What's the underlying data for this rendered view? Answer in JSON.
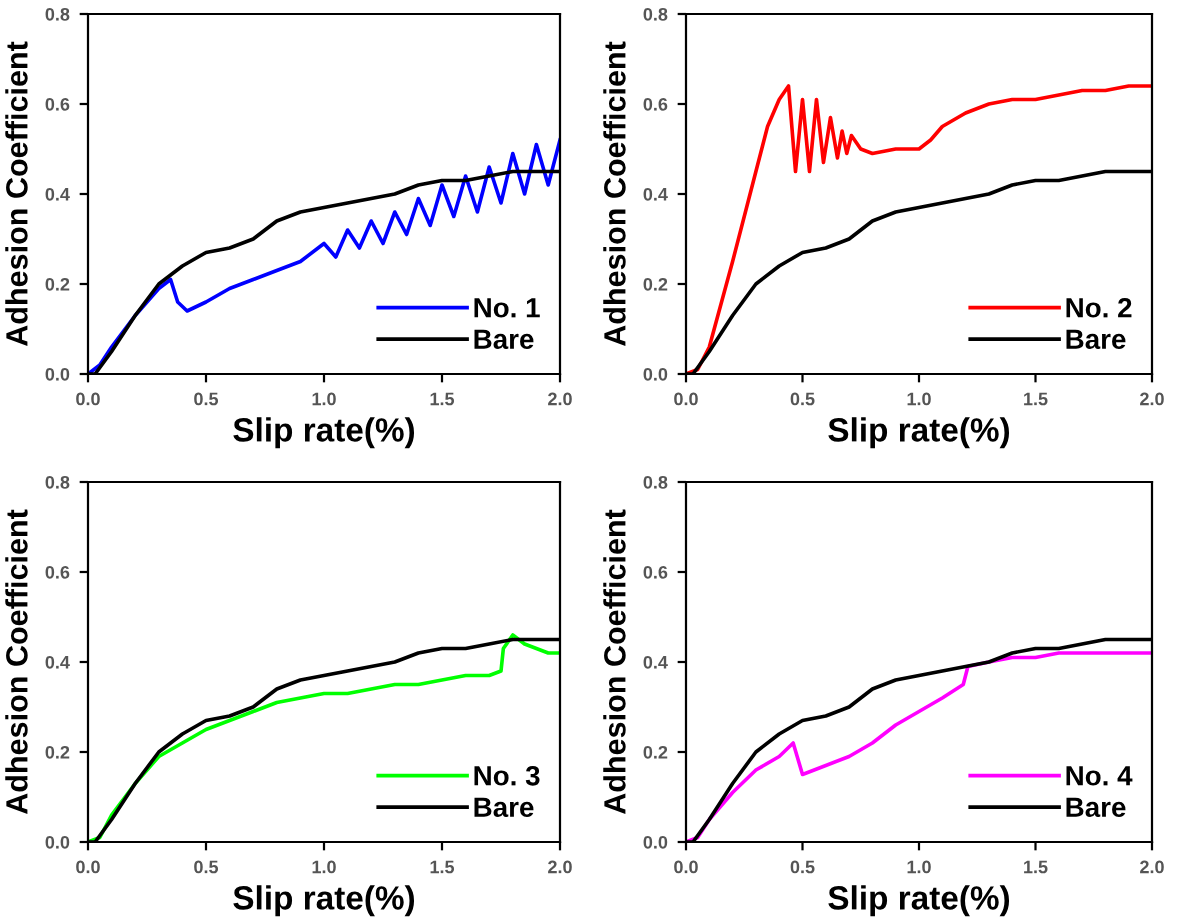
{
  "chart_data": [
    {
      "type": "line",
      "xlabel": "Slip rate(%)",
      "ylabel": "Adhesion Coefficient",
      "xlim": [
        0,
        2
      ],
      "ylim": [
        0,
        0.8
      ],
      "xticks": [
        {
          "value": 0,
          "label": "0.0"
        },
        {
          "value": 0.5,
          "label": "0.5"
        },
        {
          "value": 1,
          "label": "1.0"
        },
        {
          "value": 1.5,
          "label": "1.5"
        },
        {
          "value": 2,
          "label": "2.0"
        }
      ],
      "yticks": [
        {
          "value": 0,
          "label": "0.0"
        },
        {
          "value": 0.2,
          "label": "0.2"
        },
        {
          "value": 0.4,
          "label": "0.4"
        },
        {
          "value": 0.6,
          "label": "0.6"
        },
        {
          "value": 0.8,
          "label": "0.8"
        }
      ],
      "legend": "bottom right",
      "grid": false,
      "series": [
        {
          "name": "No. 1",
          "color": "#0000ff",
          "x": [
            0,
            0.05,
            0.1,
            0.2,
            0.3,
            0.35,
            0.38,
            0.42,
            0.5,
            0.6,
            0.7,
            0.8,
            0.9,
            1.0,
            1.05,
            1.1,
            1.15,
            1.2,
            1.25,
            1.3,
            1.35,
            1.4,
            1.45,
            1.5,
            1.55,
            1.6,
            1.65,
            1.7,
            1.75,
            1.8,
            1.85,
            1.9,
            1.95,
            2.0
          ],
          "values": [
            0,
            0.02,
            0.06,
            0.13,
            0.19,
            0.21,
            0.16,
            0.14,
            0.16,
            0.19,
            0.21,
            0.23,
            0.25,
            0.29,
            0.26,
            0.32,
            0.28,
            0.34,
            0.29,
            0.36,
            0.31,
            0.39,
            0.33,
            0.42,
            0.35,
            0.44,
            0.36,
            0.46,
            0.38,
            0.49,
            0.4,
            0.51,
            0.42,
            0.52
          ]
        },
        {
          "name": "Bare",
          "color": "#000000",
          "x": [
            0,
            0.03,
            0.1,
            0.2,
            0.3,
            0.4,
            0.5,
            0.6,
            0.7,
            0.8,
            0.9,
            1.0,
            1.1,
            1.2,
            1.3,
            1.4,
            1.5,
            1.6,
            1.7,
            1.8,
            1.9,
            2.0
          ],
          "values": [
            0,
            0,
            0.05,
            0.13,
            0.2,
            0.24,
            0.27,
            0.28,
            0.3,
            0.34,
            0.36,
            0.37,
            0.38,
            0.39,
            0.4,
            0.42,
            0.43,
            0.43,
            0.44,
            0.45,
            0.45,
            0.45
          ]
        }
      ]
    },
    {
      "type": "line",
      "xlabel": "Slip rate(%)",
      "ylabel": "Adhesion Coefficient",
      "xlim": [
        0,
        2
      ],
      "ylim": [
        0,
        0.8
      ],
      "xticks": [
        {
          "value": 0,
          "label": "0.0"
        },
        {
          "value": 0.5,
          "label": "0.5"
        },
        {
          "value": 1,
          "label": "1.0"
        },
        {
          "value": 1.5,
          "label": "1.5"
        },
        {
          "value": 2,
          "label": "2.0"
        }
      ],
      "yticks": [
        {
          "value": 0,
          "label": "0.0"
        },
        {
          "value": 0.2,
          "label": "0.2"
        },
        {
          "value": 0.4,
          "label": "0.4"
        },
        {
          "value": 0.6,
          "label": "0.6"
        },
        {
          "value": 0.8,
          "label": "0.8"
        }
      ],
      "legend": "bottom right",
      "grid": false,
      "series": [
        {
          "name": "No. 2",
          "color": "#ff0000",
          "x": [
            0,
            0.05,
            0.1,
            0.2,
            0.3,
            0.35,
            0.4,
            0.44,
            0.47,
            0.5,
            0.53,
            0.56,
            0.59,
            0.62,
            0.65,
            0.67,
            0.69,
            0.71,
            0.75,
            0.8,
            0.9,
            1.0,
            1.05,
            1.1,
            1.2,
            1.3,
            1.4,
            1.5,
            1.6,
            1.7,
            1.8,
            1.9,
            2.0
          ],
          "values": [
            0,
            0.01,
            0.06,
            0.25,
            0.45,
            0.55,
            0.61,
            0.64,
            0.45,
            0.61,
            0.45,
            0.61,
            0.47,
            0.57,
            0.48,
            0.54,
            0.49,
            0.53,
            0.5,
            0.49,
            0.5,
            0.5,
            0.52,
            0.55,
            0.58,
            0.6,
            0.61,
            0.61,
            0.62,
            0.63,
            0.63,
            0.64,
            0.64
          ]
        },
        {
          "name": "Bare",
          "color": "#000000",
          "x": [
            0,
            0.03,
            0.1,
            0.2,
            0.3,
            0.4,
            0.5,
            0.6,
            0.7,
            0.8,
            0.9,
            1.0,
            1.1,
            1.2,
            1.3,
            1.4,
            1.5,
            1.6,
            1.7,
            1.8,
            1.9,
            2.0
          ],
          "values": [
            0,
            0,
            0.05,
            0.13,
            0.2,
            0.24,
            0.27,
            0.28,
            0.3,
            0.34,
            0.36,
            0.37,
            0.38,
            0.39,
            0.4,
            0.42,
            0.43,
            0.43,
            0.44,
            0.45,
            0.45,
            0.45
          ]
        }
      ]
    },
    {
      "type": "line",
      "xlabel": "Slip rate(%)",
      "ylabel": "Adhesion Coefficient",
      "xlim": [
        0,
        2
      ],
      "ylim": [
        0,
        0.8
      ],
      "xticks": [
        {
          "value": 0,
          "label": "0.0"
        },
        {
          "value": 0.5,
          "label": "0.5"
        },
        {
          "value": 1,
          "label": "1.0"
        },
        {
          "value": 1.5,
          "label": "1.5"
        },
        {
          "value": 2,
          "label": "2.0"
        }
      ],
      "yticks": [
        {
          "value": 0,
          "label": "0.0"
        },
        {
          "value": 0.2,
          "label": "0.2"
        },
        {
          "value": 0.4,
          "label": "0.4"
        },
        {
          "value": 0.6,
          "label": "0.6"
        },
        {
          "value": 0.8,
          "label": "0.8"
        }
      ],
      "legend": "bottom right",
      "grid": false,
      "series": [
        {
          "name": "No. 3",
          "color": "#00ff00",
          "x": [
            0,
            0.05,
            0.1,
            0.2,
            0.3,
            0.4,
            0.5,
            0.6,
            0.7,
            0.8,
            0.9,
            1.0,
            1.1,
            1.2,
            1.3,
            1.4,
            1.5,
            1.6,
            1.7,
            1.75,
            1.76,
            1.8,
            1.85,
            1.9,
            1.95,
            2.0
          ],
          "values": [
            0,
            0.01,
            0.06,
            0.13,
            0.19,
            0.22,
            0.25,
            0.27,
            0.29,
            0.31,
            0.32,
            0.33,
            0.33,
            0.34,
            0.35,
            0.35,
            0.36,
            0.37,
            0.37,
            0.38,
            0.43,
            0.46,
            0.44,
            0.43,
            0.42,
            0.42
          ]
        },
        {
          "name": "Bare",
          "color": "#000000",
          "x": [
            0,
            0.03,
            0.1,
            0.2,
            0.3,
            0.4,
            0.5,
            0.6,
            0.7,
            0.8,
            0.9,
            1.0,
            1.1,
            1.2,
            1.3,
            1.4,
            1.5,
            1.6,
            1.7,
            1.8,
            1.9,
            2.0
          ],
          "values": [
            0,
            0,
            0.05,
            0.13,
            0.2,
            0.24,
            0.27,
            0.28,
            0.3,
            0.34,
            0.36,
            0.37,
            0.38,
            0.39,
            0.4,
            0.42,
            0.43,
            0.43,
            0.44,
            0.45,
            0.45,
            0.45
          ]
        }
      ]
    },
    {
      "type": "line",
      "xlabel": "Slip rate(%)",
      "ylabel": "Adhesion Coefficient",
      "xlim": [
        0,
        2
      ],
      "ylim": [
        0,
        0.8
      ],
      "xticks": [
        {
          "value": 0,
          "label": "0.0"
        },
        {
          "value": 0.5,
          "label": "0.5"
        },
        {
          "value": 1,
          "label": "1.0"
        },
        {
          "value": 1.5,
          "label": "1.5"
        },
        {
          "value": 2,
          "label": "2.0"
        }
      ],
      "yticks": [
        {
          "value": 0,
          "label": "0.0"
        },
        {
          "value": 0.2,
          "label": "0.2"
        },
        {
          "value": 0.4,
          "label": "0.4"
        },
        {
          "value": 0.6,
          "label": "0.6"
        },
        {
          "value": 0.8,
          "label": "0.8"
        }
      ],
      "legend": "bottom right",
      "grid": false,
      "series": [
        {
          "name": "No. 4",
          "color": "#ff00ff",
          "x": [
            0,
            0.05,
            0.1,
            0.2,
            0.3,
            0.4,
            0.46,
            0.5,
            0.6,
            0.7,
            0.8,
            0.9,
            1.0,
            1.1,
            1.19,
            1.21,
            1.3,
            1.4,
            1.5,
            1.6,
            1.7,
            1.8,
            1.9,
            2.0
          ],
          "values": [
            0,
            0.01,
            0.05,
            0.11,
            0.16,
            0.19,
            0.22,
            0.15,
            0.17,
            0.19,
            0.22,
            0.26,
            0.29,
            0.32,
            0.35,
            0.39,
            0.4,
            0.41,
            0.41,
            0.42,
            0.42,
            0.42,
            0.42,
            0.42
          ]
        },
        {
          "name": "Bare",
          "color": "#000000",
          "x": [
            0,
            0.03,
            0.1,
            0.2,
            0.3,
            0.4,
            0.5,
            0.6,
            0.7,
            0.8,
            0.9,
            1.0,
            1.1,
            1.2,
            1.3,
            1.4,
            1.5,
            1.6,
            1.7,
            1.8,
            1.9,
            2.0
          ],
          "values": [
            0,
            0,
            0.05,
            0.13,
            0.2,
            0.24,
            0.27,
            0.28,
            0.3,
            0.34,
            0.36,
            0.37,
            0.38,
            0.39,
            0.4,
            0.42,
            0.43,
            0.43,
            0.44,
            0.45,
            0.45,
            0.45
          ]
        }
      ]
    }
  ]
}
